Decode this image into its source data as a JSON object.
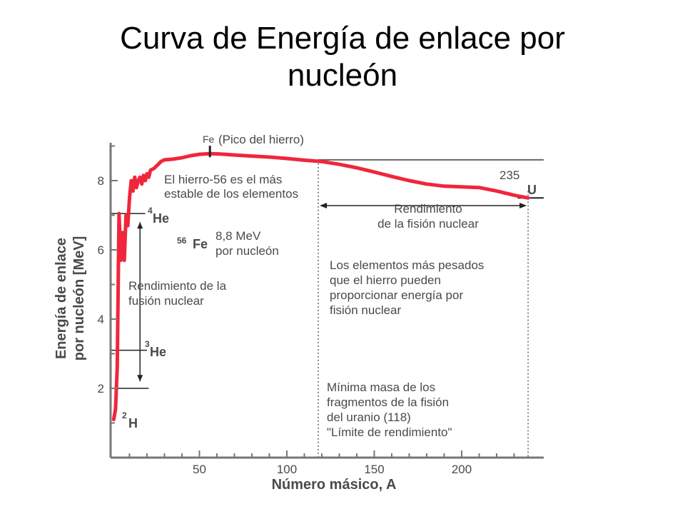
{
  "slide": {
    "title_line1": "Curva de Energía de enlace por",
    "title_line2": "nucleón"
  },
  "chart_data": {
    "type": "line",
    "xlabel": "Número másico, A",
    "ylabel_line1": "Energía de enlace",
    "ylabel_line2": "por nucleón [MeV]",
    "xlim": [
      0,
      240
    ],
    "ylim": [
      0,
      9.5
    ],
    "x_ticks": [
      50,
      100,
      150,
      200
    ],
    "y_ticks": [
      2,
      4,
      6,
      8
    ],
    "series": [
      {
        "color": "#f0263c",
        "x": [
          1,
          2,
          3,
          4,
          5,
          6,
          7,
          8,
          9,
          10,
          11,
          12,
          13,
          14,
          15,
          16,
          17,
          18,
          19,
          20,
          21,
          22,
          24,
          26,
          28,
          30,
          35,
          40,
          45,
          50,
          56,
          62,
          70,
          80,
          90,
          100,
          110,
          120,
          130,
          140,
          150,
          160,
          170,
          180,
          190,
          200,
          210,
          220,
          230,
          238
        ],
        "y": [
          1.1,
          1.4,
          2.6,
          7.05,
          5.7,
          6.5,
          5.7,
          7.0,
          6.7,
          7.5,
          8.0,
          7.7,
          8.1,
          7.8,
          8.0,
          8.1,
          7.9,
          8.15,
          8.0,
          8.2,
          8.1,
          8.3,
          8.35,
          8.45,
          8.55,
          8.6,
          8.62,
          8.66,
          8.72,
          8.76,
          8.78,
          8.77,
          8.74,
          8.71,
          8.68,
          8.64,
          8.59,
          8.55,
          8.47,
          8.37,
          8.25,
          8.12,
          8.0,
          7.9,
          7.84,
          7.82,
          7.8,
          7.7,
          7.58,
          7.5
        ]
      }
    ],
    "reference_lines": {
      "h_8_6": 8.6,
      "h_7_5": 7.5,
      "h_7": 7.05,
      "h_3": 3.1,
      "h_2": 2.0,
      "v_dotted_1": 118,
      "v_dotted_2": 238
    },
    "markers": {
      "fe_peak_x": 56,
      "fe_peak_y": 8.8
    },
    "annotations": {
      "fe": "Fe",
      "pico": "(Pico del hierro)",
      "hierro_1": "El hierro-56 es el más",
      "hierro_2": "estable de los elementos",
      "he4_sup": "4",
      "he4": "He",
      "fe56_sup": "56",
      "fe56": "Fe",
      "mev_1": "8,8 MeV",
      "mev_2": "por nucleón",
      "fusion_1": "Rendimiento de la",
      "fusion_2": "fusión nuclear",
      "he3_sup": "3",
      "he3": "He",
      "h2_sup": "2",
      "h2": "H",
      "u_num": "235",
      "u": "U",
      "fision_1": "Rendimiento",
      "fision_2": "de la fisión nuclear",
      "pesados_1": "Los elementos más pesados",
      "pesados_2": "que el hierro pueden",
      "pesados_3": "proporcionar energía por",
      "pesados_4": "fisión nuclear",
      "minima_1": "Mínima masa de los",
      "minima_2": "fragmentos de la fisión",
      "minima_3": "del uranio (118)",
      "minima_4": "\"Límite de rendimiento\""
    }
  }
}
